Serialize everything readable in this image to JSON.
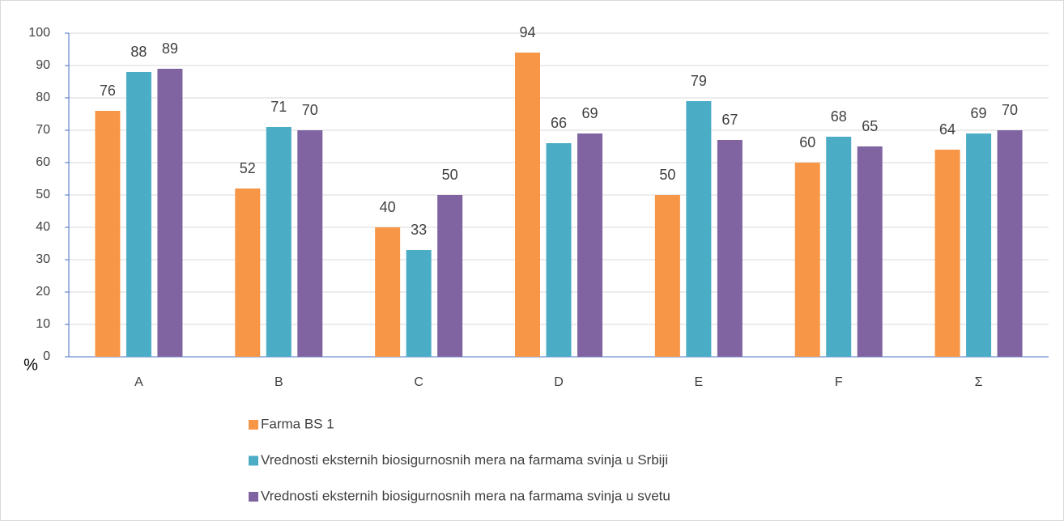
{
  "chart_data": {
    "type": "bar",
    "y_label": "%",
    "categories": [
      "A",
      "B",
      "C",
      "D",
      "E",
      "F",
      "Σ"
    ],
    "series": [
      {
        "name": "Farma BS 1",
        "color": "#F79646",
        "values": [
          76,
          52,
          40,
          94,
          50,
          60,
          64
        ]
      },
      {
        "name": "Vrednosti eksternih biosigurnosnih mera na farmama svinja u Srbiji",
        "color": "#4BACC6",
        "values": [
          88,
          71,
          33,
          66,
          79,
          68,
          69
        ]
      },
      {
        "name": "Vrednosti eksternih biosigurnosnih mera na farmama svinja u svetu",
        "color": "#8064A2",
        "values": [
          89,
          70,
          50,
          69,
          67,
          65,
          70
        ]
      }
    ],
    "ylim": [
      0,
      100
    ],
    "yticks": [
      0,
      10,
      20,
      30,
      40,
      50,
      60,
      70,
      80,
      90,
      100
    ],
    "grid": true,
    "legend": "bottom",
    "data_labels": true
  }
}
